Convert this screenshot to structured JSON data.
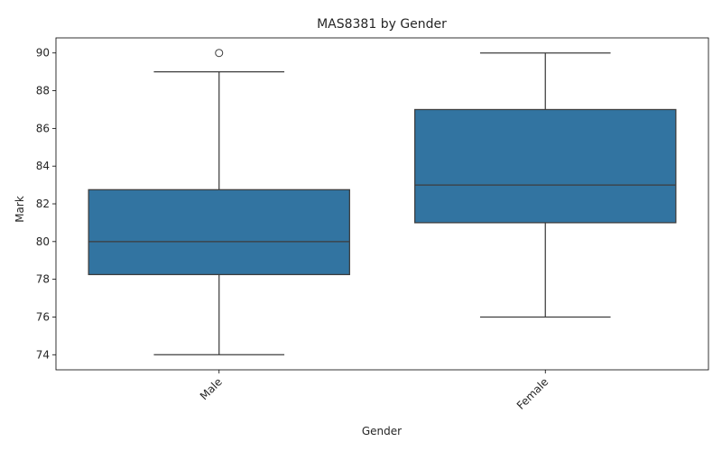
{
  "chart_data": {
    "type": "box",
    "title": "MAS8381 by Gender",
    "xlabel": "Gender",
    "ylabel": "Mark",
    "ylim": [
      73.2,
      90.8
    ],
    "yticks": [
      74,
      76,
      78,
      80,
      82,
      84,
      86,
      88,
      90
    ],
    "categories": [
      "Male",
      "Female"
    ],
    "box_color": "#3274a1",
    "line_color": "#3d3d3d",
    "boxes": [
      {
        "category": "Male",
        "whisker_low": 74,
        "q1": 78.25,
        "median": 80,
        "q3": 82.75,
        "whisker_high": 89,
        "outliers": [
          90
        ]
      },
      {
        "category": "Female",
        "whisker_low": 76,
        "q1": 81,
        "median": 83,
        "q3": 87,
        "whisker_high": 90,
        "outliers": []
      }
    ],
    "grid": false,
    "x_tick_rotation_deg": 45
  }
}
